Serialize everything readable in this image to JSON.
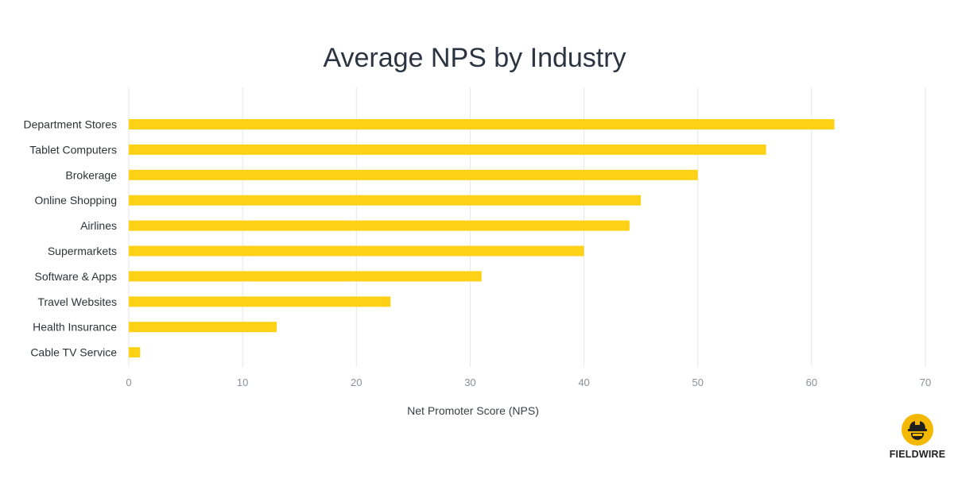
{
  "chart_data": {
    "type": "bar",
    "orientation": "horizontal",
    "title": "Average NPS by Industry",
    "xlabel": "Net Promoter Score (NPS)",
    "ylabel": "",
    "categories": [
      "Department Stores",
      "Tablet Computers",
      "Brokerage",
      "Online Shopping",
      "Airlines",
      "Supermarkets",
      "Software & Apps",
      "Travel Websites",
      "Health Insurance",
      "Cable TV Service"
    ],
    "values": [
      62,
      56,
      50,
      45,
      44,
      40,
      31,
      23,
      13,
      1
    ],
    "xlim": [
      0,
      70
    ],
    "xticks": [
      0,
      10,
      20,
      30,
      40,
      50,
      60,
      70
    ],
    "grid": true,
    "bar_color": "#fcd116",
    "grid_color": "#e6e6e6"
  },
  "logo": {
    "text": "FIELDWIRE",
    "color": "#f5b800"
  }
}
